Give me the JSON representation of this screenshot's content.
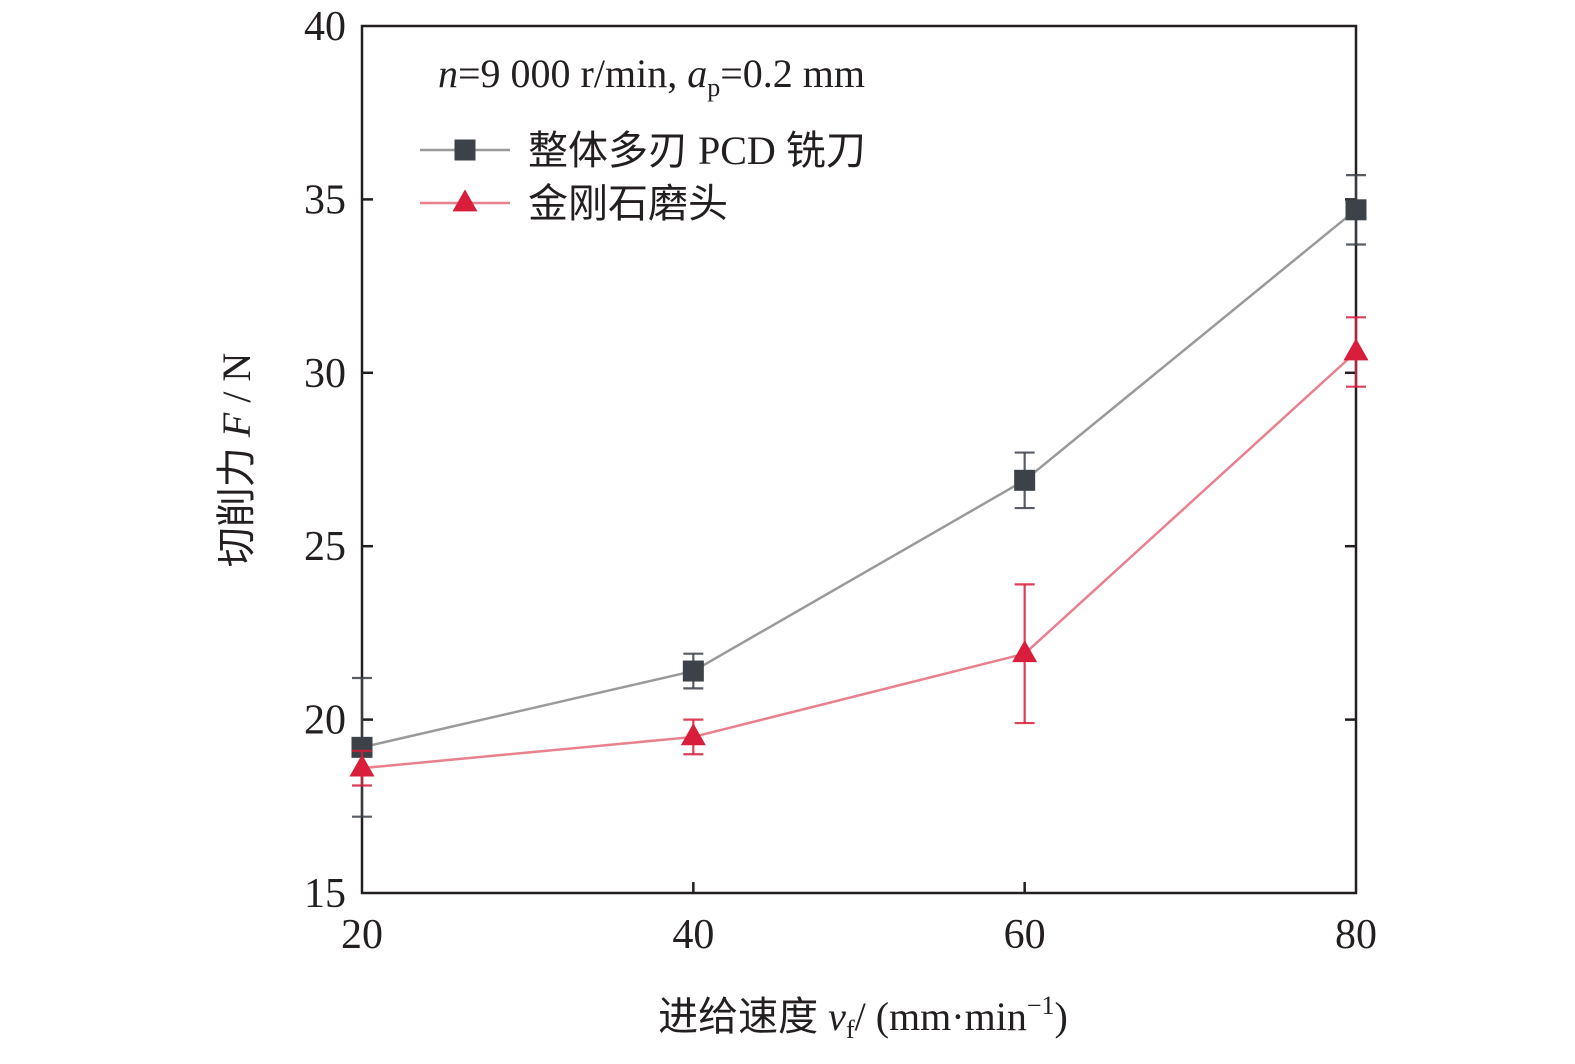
{
  "chart_data": {
    "type": "line",
    "annotation": {
      "n_var": "n",
      "n_text": "=9 000 r/min, ",
      "ap_var": "a",
      "ap_sub": "p",
      "ap_text": "=0.2 mm"
    },
    "xlabel": {
      "text": "进给速度 ",
      "var": "v",
      "sub": "f",
      "unit": "/ (mm·min",
      "sup": "−1",
      "close": ")"
    },
    "ylabel": {
      "text": "切削力 ",
      "var": "F",
      "unit": " / N"
    },
    "x": [
      20,
      40,
      60,
      80
    ],
    "xticks": [
      "20",
      "40",
      "60",
      "80"
    ],
    "yticks": [
      "15",
      "20",
      "25",
      "30",
      "35",
      "40"
    ],
    "xlim": [
      20,
      80
    ],
    "ylim": [
      15,
      40
    ],
    "grid": false,
    "legend_position": "top-left",
    "series": [
      {
        "name": "整体多刃 PCD 铣刀",
        "marker": "square",
        "color": "#3d4148",
        "line_color": "#9a9a9a",
        "values": [
          19.2,
          21.4,
          26.9,
          34.7
        ],
        "errors": [
          2.0,
          0.5,
          0.8,
          1.0
        ]
      },
      {
        "name": "金刚石磨头",
        "marker": "triangle",
        "color": "#d81e3a",
        "line_color": "#e8808e",
        "values": [
          18.6,
          19.5,
          21.9,
          30.6
        ],
        "errors": [
          0.5,
          0.5,
          2.0,
          1.0
        ]
      }
    ]
  }
}
